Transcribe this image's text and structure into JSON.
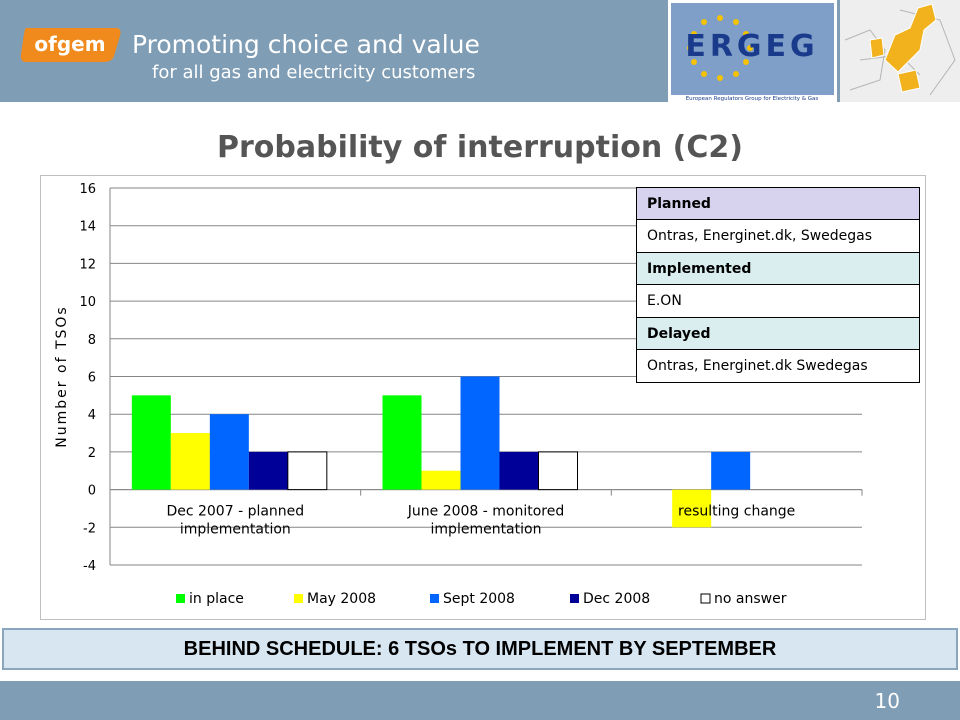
{
  "header": {
    "logo_text": "ofgem",
    "tagline_line1": "Promoting choice and value",
    "tagline_line2": "for all gas and electricity customers",
    "ergeg_logo_text": "ERGEG",
    "ergeg_subtitle": "European Regulators Group for Electricity & Gas"
  },
  "slide_title": "Probability of interruption (C2)",
  "chart_data": {
    "type": "bar",
    "title": "",
    "ylabel": "Number of TSOs",
    "xlabel": "",
    "ylim": [
      -4,
      16
    ],
    "yticks": [
      -4,
      -2,
      0,
      2,
      4,
      6,
      8,
      10,
      12,
      14,
      16
    ],
    "categories": [
      [
        "Dec 2007 - planned",
        "implementation"
      ],
      [
        "June 2008 - monitored",
        "implementation"
      ],
      [
        "resulting change"
      ]
    ],
    "series": [
      {
        "name": "in place",
        "color": "#00ff00",
        "values": [
          5,
          5,
          0
        ]
      },
      {
        "name": "May 2008",
        "color": "#ffff00",
        "values": [
          3,
          1,
          -2
        ]
      },
      {
        "name": "Sept 2008",
        "color": "#0066ff",
        "values": [
          4,
          6,
          2
        ]
      },
      {
        "name": "Dec 2008",
        "color": "#000099",
        "values": [
          2,
          2,
          0
        ]
      },
      {
        "name": "no answer",
        "color": "#ffffff",
        "values": [
          2,
          2,
          0
        ]
      }
    ],
    "legend_position": "bottom",
    "grid": true
  },
  "info_table": {
    "planned_header": "Planned",
    "planned_text": "Ontras, Energinet.dk, Swedegas",
    "implemented_header": "Implemented",
    "implemented_text": "E.ON",
    "delayed_header": "Delayed",
    "delayed_text": "Ontras, Energinet.dk Swedegas"
  },
  "banner_text": "BEHIND SCHEDULE: 6 TSOs TO IMPLEMENT BY SEPTEMBER",
  "page_number": "10"
}
